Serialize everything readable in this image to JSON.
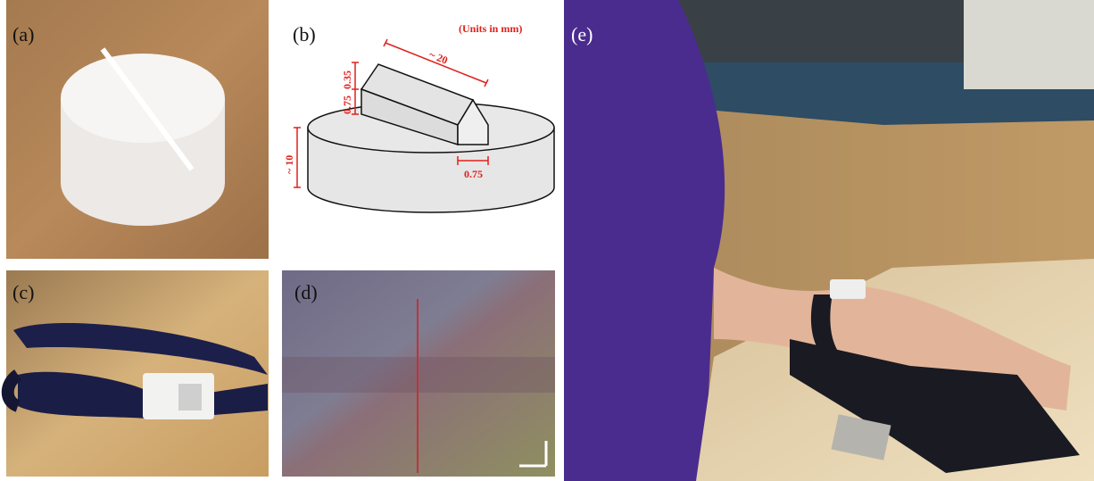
{
  "panels": {
    "a": {
      "label": "(a)"
    },
    "b": {
      "label": "(b)",
      "units": "(Units in mm)",
      "length": "~ 20",
      "ridge_height": "0.35",
      "wall_height": "0.75",
      "base_height": "~ 10",
      "width": "0.75"
    },
    "c": {
      "label": "(c)"
    },
    "d": {
      "label": "(d)"
    },
    "e": {
      "label": "(e)"
    }
  }
}
